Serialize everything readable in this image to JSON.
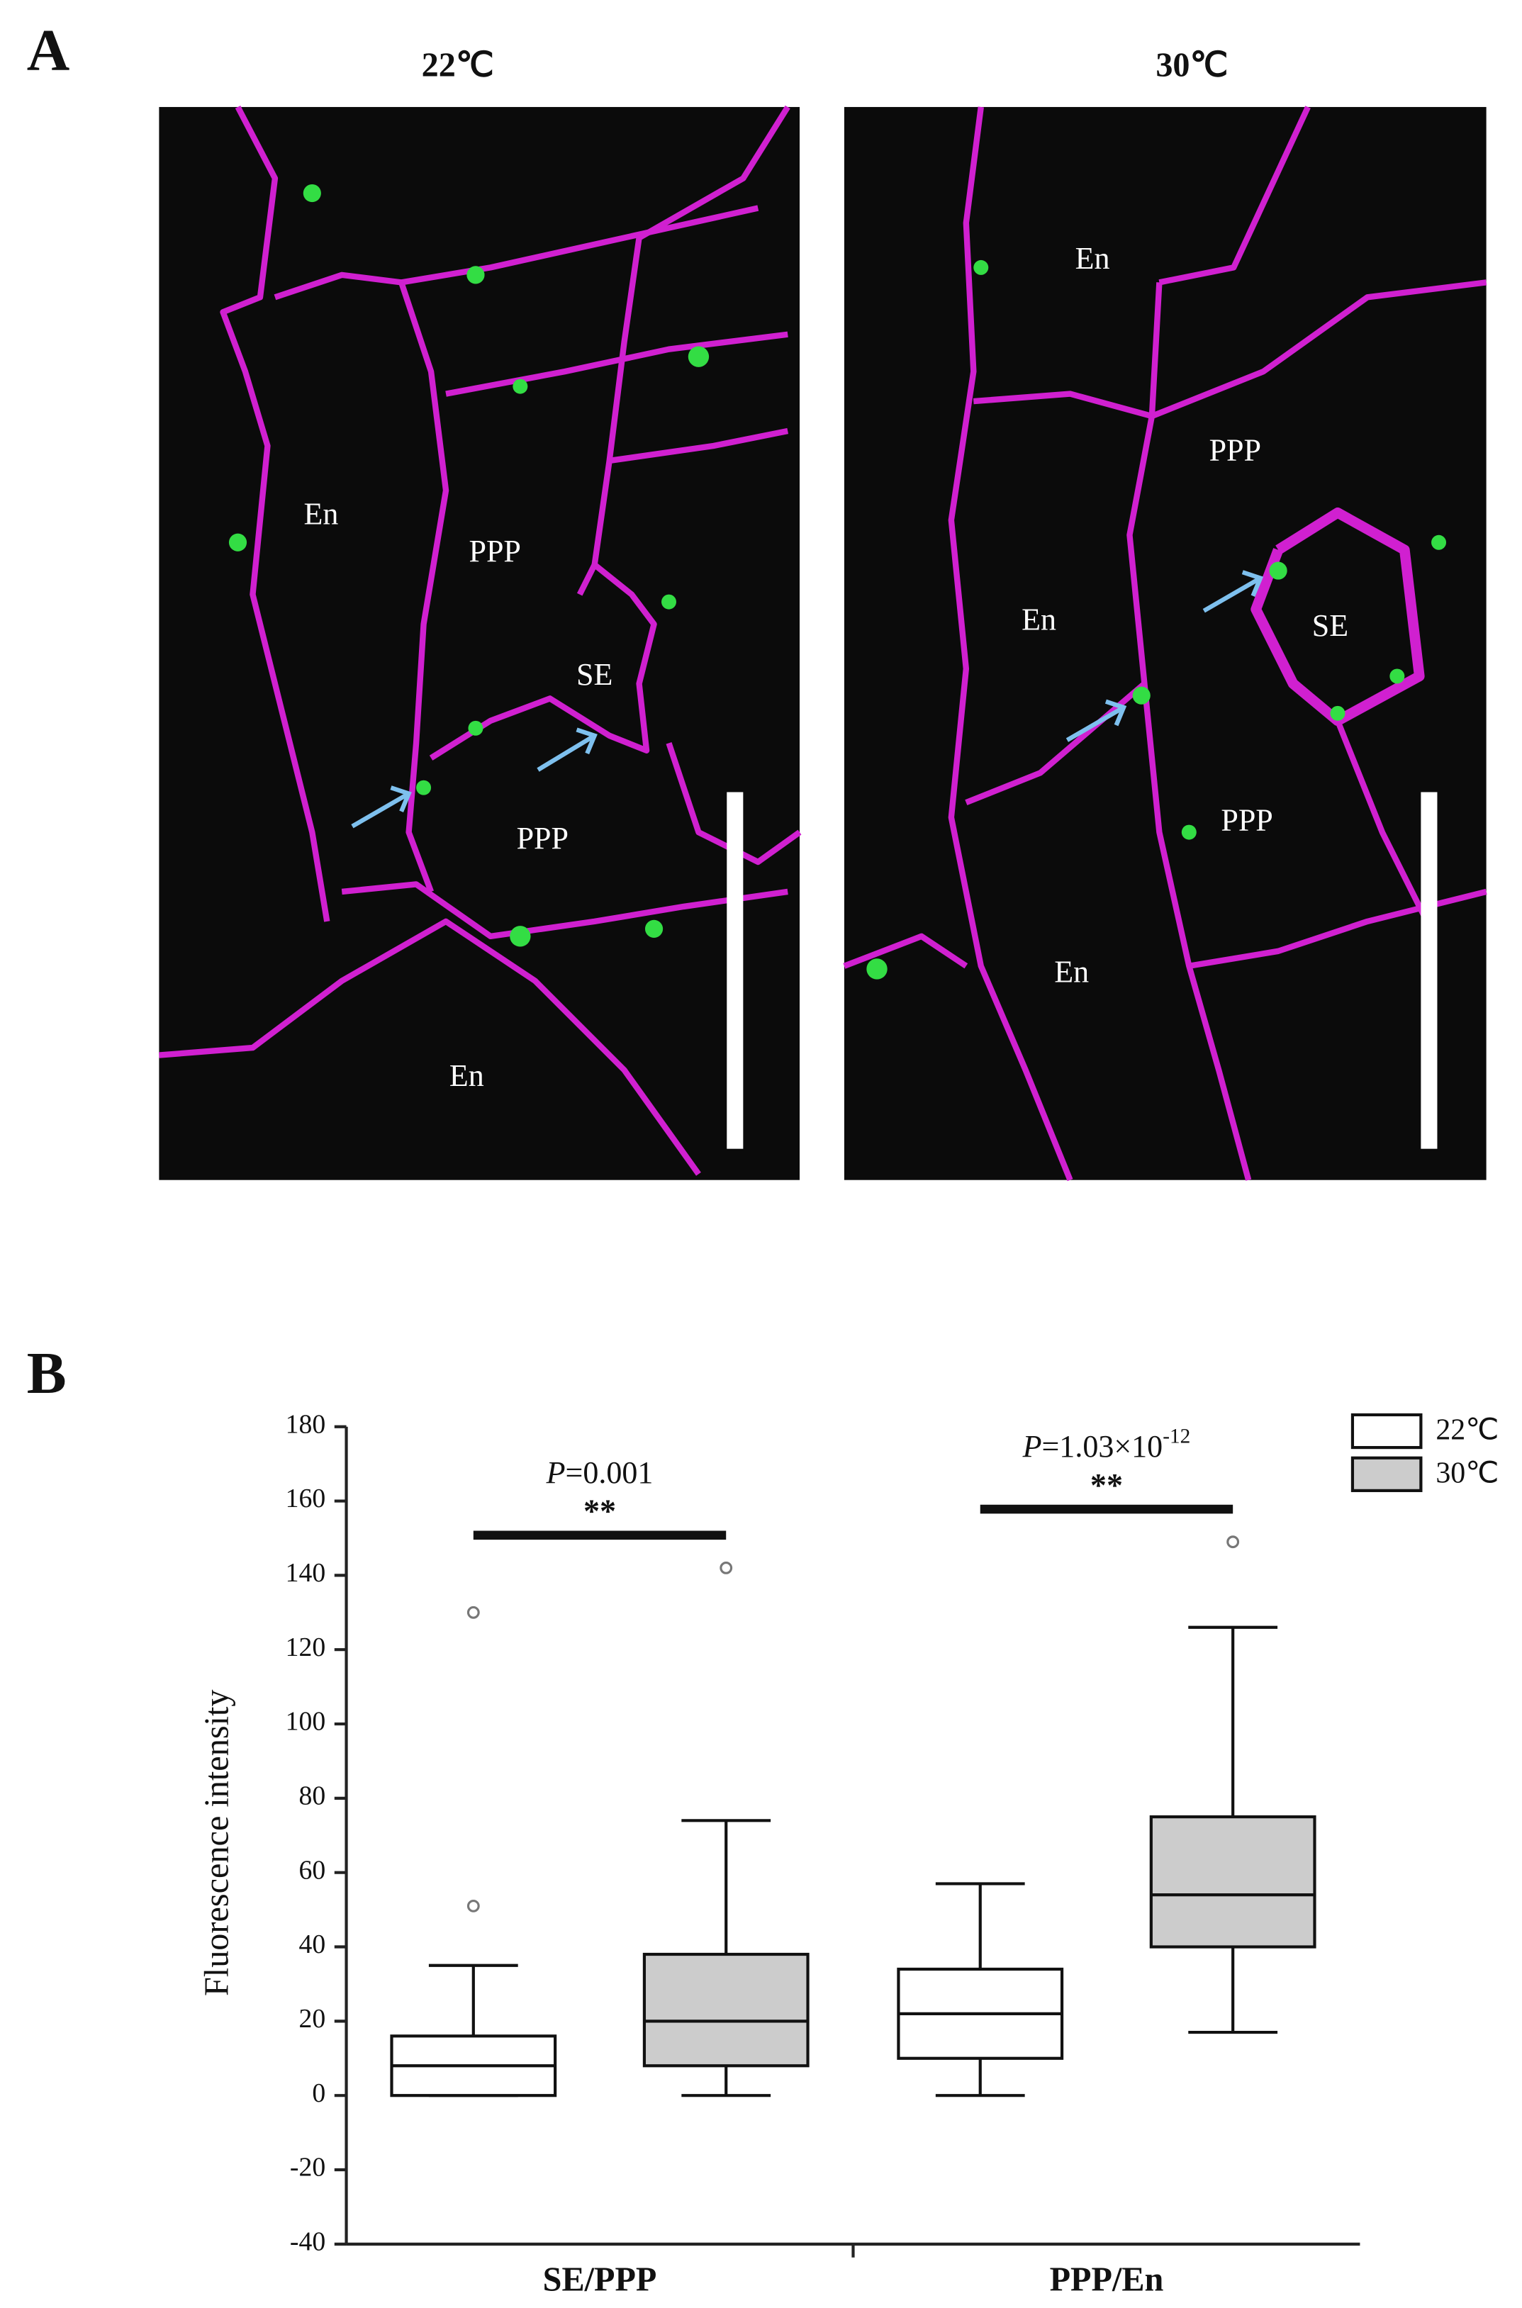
{
  "panel_a": {
    "label": "A",
    "images": [
      {
        "title": "22℃",
        "labels": [
          "En",
          "PPP",
          "SE",
          "PPP",
          "En"
        ]
      },
      {
        "title": "30℃",
        "labels": [
          "En",
          "PPP",
          "En",
          "SE",
          "PPP",
          "En"
        ]
      }
    ]
  },
  "panel_b_label": "B",
  "chart_data": {
    "type": "box",
    "ylabel": "Fluorescence intensity",
    "categories": [
      "SE/PPP",
      "PPP/En"
    ],
    "series": [
      {
        "name": "22℃",
        "color": "#ffffff",
        "values": [
          {
            "low": 0,
            "q1": 0,
            "median": 8,
            "q3": 16,
            "high": 35,
            "outliers": [
              51,
              130
            ]
          },
          {
            "low": 0,
            "q1": 10,
            "median": 22,
            "q3": 34,
            "high": 57,
            "outliers": []
          }
        ]
      },
      {
        "name": "30℃",
        "color": "#cccccc",
        "values": [
          {
            "low": 0,
            "q1": 8,
            "median": 20,
            "q3": 38,
            "high": 74,
            "outliers": [
              142
            ]
          },
          {
            "low": 17,
            "q1": 40,
            "median": 54,
            "q3": 75,
            "high": 126,
            "outliers": [
              149
            ]
          }
        ]
      }
    ],
    "annotations": [
      {
        "p": "P",
        "text": "=0.001",
        "stars": "**"
      },
      {
        "p": "P",
        "text": "=1.03×10",
        "superscript": "-12",
        "stars": "**"
      }
    ],
    "ylim": [
      -40,
      180
    ],
    "yticks": [
      -40,
      -20,
      0,
      20,
      40,
      60,
      80,
      100,
      120,
      140,
      160,
      180
    ],
    "legend": "top-right"
  }
}
